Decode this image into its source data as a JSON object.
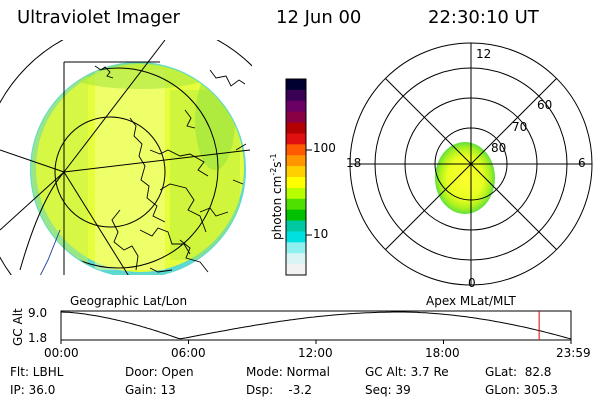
{
  "header": {
    "instrument": "Ultraviolet Imager",
    "date": "12 Jun 00",
    "time": "22:30:10 UT"
  },
  "colorbar": {
    "unit_label": "photon cm",
    "unit_exp": "-2",
    "unit_s": "s",
    "unit_exp2": "-1",
    "tick_100": "100",
    "tick_10": "10",
    "colors": [
      "#000030",
      "#3a0055",
      "#6a0066",
      "#8a0045",
      "#b30000",
      "#e01010",
      "#ff5a00",
      "#ff9600",
      "#ffd000",
      "#ffff00",
      "#b8ff00",
      "#50e000",
      "#00c000",
      "#00c8a0",
      "#00e0e0",
      "#8ff0f0",
      "#d8f4f4",
      "#f2f2f2"
    ]
  },
  "panels": {
    "left_label": "Geographic Lat/Lon",
    "right_label": "Apex MLat/MLT"
  },
  "polar": {
    "mlt_labels": {
      "top": "12",
      "left": "18",
      "right": "6",
      "bottom": "0"
    },
    "lat_labels": [
      "60",
      "70",
      "80"
    ]
  },
  "timeline": {
    "ylabel": "GC Alt",
    "ymax": "9.0",
    "ymin": "1.8",
    "ticks": [
      "00:00",
      "06:00",
      "12:00",
      "18:00",
      "23:59"
    ],
    "marker_time": "22:30"
  },
  "status": {
    "flt": "Flt: LBHL",
    "ip": "IP: 36.0",
    "door": "Door: Open",
    "gain": "Gain: 13",
    "mode": "Mode: Normal",
    "dsp": "Dsp:    -3.2",
    "gc_alt": "GC Alt: 3.7 Re",
    "seq": "Seq: 39",
    "glat": "GLat:  82.8",
    "glon": "GLon: 305.3"
  }
}
